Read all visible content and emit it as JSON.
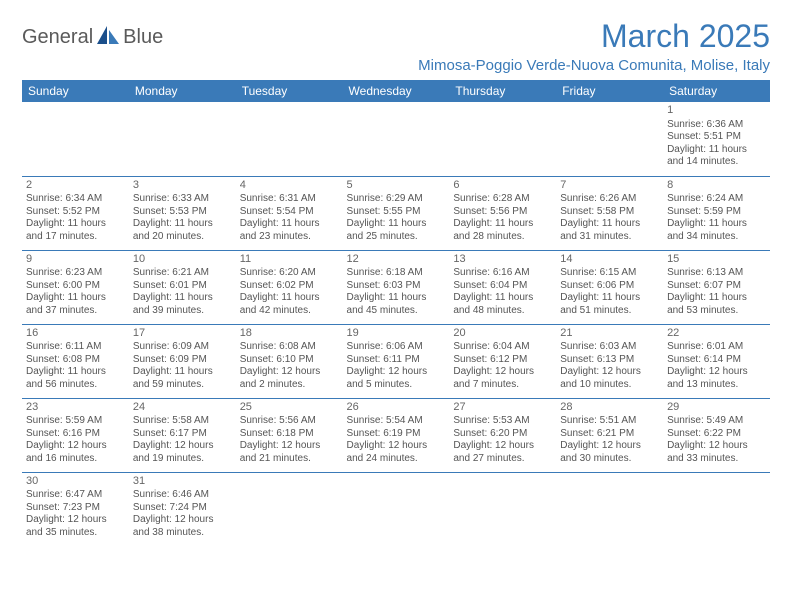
{
  "logo": {
    "textA": "General",
    "textB": "Blue"
  },
  "title": "March 2025",
  "location": "Mimosa-Poggio Verde-Nuova Comunita, Molise, Italy",
  "colors": {
    "accent": "#3a7ab8",
    "text": "#555555",
    "bg": "#ffffff"
  },
  "dayHeaders": [
    "Sunday",
    "Monday",
    "Tuesday",
    "Wednesday",
    "Thursday",
    "Friday",
    "Saturday"
  ],
  "weeks": [
    [
      null,
      null,
      null,
      null,
      null,
      null,
      {
        "n": "1",
        "sr": "Sunrise: 6:36 AM",
        "ss": "Sunset: 5:51 PM",
        "dl": "Daylight: 11 hours and 14 minutes."
      }
    ],
    [
      {
        "n": "2",
        "sr": "Sunrise: 6:34 AM",
        "ss": "Sunset: 5:52 PM",
        "dl": "Daylight: 11 hours and 17 minutes."
      },
      {
        "n": "3",
        "sr": "Sunrise: 6:33 AM",
        "ss": "Sunset: 5:53 PM",
        "dl": "Daylight: 11 hours and 20 minutes."
      },
      {
        "n": "4",
        "sr": "Sunrise: 6:31 AM",
        "ss": "Sunset: 5:54 PM",
        "dl": "Daylight: 11 hours and 23 minutes."
      },
      {
        "n": "5",
        "sr": "Sunrise: 6:29 AM",
        "ss": "Sunset: 5:55 PM",
        "dl": "Daylight: 11 hours and 25 minutes."
      },
      {
        "n": "6",
        "sr": "Sunrise: 6:28 AM",
        "ss": "Sunset: 5:56 PM",
        "dl": "Daylight: 11 hours and 28 minutes."
      },
      {
        "n": "7",
        "sr": "Sunrise: 6:26 AM",
        "ss": "Sunset: 5:58 PM",
        "dl": "Daylight: 11 hours and 31 minutes."
      },
      {
        "n": "8",
        "sr": "Sunrise: 6:24 AM",
        "ss": "Sunset: 5:59 PM",
        "dl": "Daylight: 11 hours and 34 minutes."
      }
    ],
    [
      {
        "n": "9",
        "sr": "Sunrise: 6:23 AM",
        "ss": "Sunset: 6:00 PM",
        "dl": "Daylight: 11 hours and 37 minutes."
      },
      {
        "n": "10",
        "sr": "Sunrise: 6:21 AM",
        "ss": "Sunset: 6:01 PM",
        "dl": "Daylight: 11 hours and 39 minutes."
      },
      {
        "n": "11",
        "sr": "Sunrise: 6:20 AM",
        "ss": "Sunset: 6:02 PM",
        "dl": "Daylight: 11 hours and 42 minutes."
      },
      {
        "n": "12",
        "sr": "Sunrise: 6:18 AM",
        "ss": "Sunset: 6:03 PM",
        "dl": "Daylight: 11 hours and 45 minutes."
      },
      {
        "n": "13",
        "sr": "Sunrise: 6:16 AM",
        "ss": "Sunset: 6:04 PM",
        "dl": "Daylight: 11 hours and 48 minutes."
      },
      {
        "n": "14",
        "sr": "Sunrise: 6:15 AM",
        "ss": "Sunset: 6:06 PM",
        "dl": "Daylight: 11 hours and 51 minutes."
      },
      {
        "n": "15",
        "sr": "Sunrise: 6:13 AM",
        "ss": "Sunset: 6:07 PM",
        "dl": "Daylight: 11 hours and 53 minutes."
      }
    ],
    [
      {
        "n": "16",
        "sr": "Sunrise: 6:11 AM",
        "ss": "Sunset: 6:08 PM",
        "dl": "Daylight: 11 hours and 56 minutes."
      },
      {
        "n": "17",
        "sr": "Sunrise: 6:09 AM",
        "ss": "Sunset: 6:09 PM",
        "dl": "Daylight: 11 hours and 59 minutes."
      },
      {
        "n": "18",
        "sr": "Sunrise: 6:08 AM",
        "ss": "Sunset: 6:10 PM",
        "dl": "Daylight: 12 hours and 2 minutes."
      },
      {
        "n": "19",
        "sr": "Sunrise: 6:06 AM",
        "ss": "Sunset: 6:11 PM",
        "dl": "Daylight: 12 hours and 5 minutes."
      },
      {
        "n": "20",
        "sr": "Sunrise: 6:04 AM",
        "ss": "Sunset: 6:12 PM",
        "dl": "Daylight: 12 hours and 7 minutes."
      },
      {
        "n": "21",
        "sr": "Sunrise: 6:03 AM",
        "ss": "Sunset: 6:13 PM",
        "dl": "Daylight: 12 hours and 10 minutes."
      },
      {
        "n": "22",
        "sr": "Sunrise: 6:01 AM",
        "ss": "Sunset: 6:14 PM",
        "dl": "Daylight: 12 hours and 13 minutes."
      }
    ],
    [
      {
        "n": "23",
        "sr": "Sunrise: 5:59 AM",
        "ss": "Sunset: 6:16 PM",
        "dl": "Daylight: 12 hours and 16 minutes."
      },
      {
        "n": "24",
        "sr": "Sunrise: 5:58 AM",
        "ss": "Sunset: 6:17 PM",
        "dl": "Daylight: 12 hours and 19 minutes."
      },
      {
        "n": "25",
        "sr": "Sunrise: 5:56 AM",
        "ss": "Sunset: 6:18 PM",
        "dl": "Daylight: 12 hours and 21 minutes."
      },
      {
        "n": "26",
        "sr": "Sunrise: 5:54 AM",
        "ss": "Sunset: 6:19 PM",
        "dl": "Daylight: 12 hours and 24 minutes."
      },
      {
        "n": "27",
        "sr": "Sunrise: 5:53 AM",
        "ss": "Sunset: 6:20 PM",
        "dl": "Daylight: 12 hours and 27 minutes."
      },
      {
        "n": "28",
        "sr": "Sunrise: 5:51 AM",
        "ss": "Sunset: 6:21 PM",
        "dl": "Daylight: 12 hours and 30 minutes."
      },
      {
        "n": "29",
        "sr": "Sunrise: 5:49 AM",
        "ss": "Sunset: 6:22 PM",
        "dl": "Daylight: 12 hours and 33 minutes."
      }
    ],
    [
      {
        "n": "30",
        "sr": "Sunrise: 6:47 AM",
        "ss": "Sunset: 7:23 PM",
        "dl": "Daylight: 12 hours and 35 minutes."
      },
      {
        "n": "31",
        "sr": "Sunrise: 6:46 AM",
        "ss": "Sunset: 7:24 PM",
        "dl": "Daylight: 12 hours and 38 minutes."
      },
      null,
      null,
      null,
      null,
      null
    ]
  ]
}
